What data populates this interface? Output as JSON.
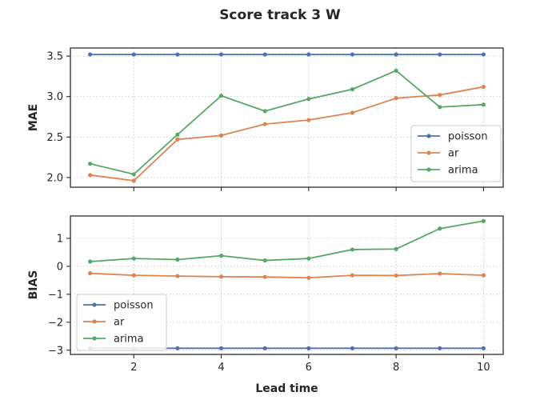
{
  "chart_data": {
    "type": "line",
    "title": "Score track 3 W",
    "xlabel": "Lead time",
    "x": [
      1,
      2,
      3,
      4,
      5,
      6,
      7,
      8,
      9,
      10
    ],
    "xticks": [
      2,
      4,
      6,
      8,
      10
    ],
    "xlim": [
      0.55,
      10.45
    ],
    "grid": true,
    "colors": {
      "poisson": "#4c72b0",
      "ar": "#dd8452",
      "arima": "#55a868"
    },
    "panels": [
      {
        "ylabel": "MAE",
        "ylim": [
          1.88,
          3.6
        ],
        "yticks": [
          2.0,
          2.5,
          3.0,
          3.5
        ],
        "ytick_labels": [
          "2.0",
          "2.5",
          "3.0",
          "3.5"
        ],
        "legend_loc": "lower-right",
        "series": [
          {
            "name": "poisson",
            "values": [
              3.52,
              3.52,
              3.52,
              3.52,
              3.52,
              3.52,
              3.52,
              3.52,
              3.52,
              3.52
            ]
          },
          {
            "name": "ar",
            "values": [
              2.03,
              1.96,
              2.47,
              2.52,
              2.66,
              2.71,
              2.8,
              2.98,
              3.02,
              3.12
            ]
          },
          {
            "name": "arima",
            "values": [
              2.17,
              2.04,
              2.53,
              3.01,
              2.82,
              2.97,
              3.09,
              3.32,
              2.87,
              2.9
            ]
          }
        ]
      },
      {
        "ylabel": "BIAS",
        "ylim": [
          -3.15,
          1.8
        ],
        "yticks": [
          -3,
          -2,
          -1,
          0,
          1
        ],
        "ytick_labels": [
          "−3",
          "−2",
          "−1",
          "0",
          "1"
        ],
        "legend_loc": "lower-left",
        "series": [
          {
            "name": "poisson",
            "values": [
              -2.93,
              -2.93,
              -2.93,
              -2.93,
              -2.93,
              -2.93,
              -2.93,
              -2.93,
              -2.93,
              -2.93
            ]
          },
          {
            "name": "ar",
            "values": [
              -0.25,
              -0.32,
              -0.35,
              -0.37,
              -0.38,
              -0.41,
              -0.32,
              -0.33,
              -0.26,
              -0.32
            ]
          },
          {
            "name": "arima",
            "values": [
              0.17,
              0.28,
              0.24,
              0.38,
              0.21,
              0.28,
              0.6,
              0.62,
              1.35,
              1.62
            ]
          }
        ]
      }
    ]
  }
}
